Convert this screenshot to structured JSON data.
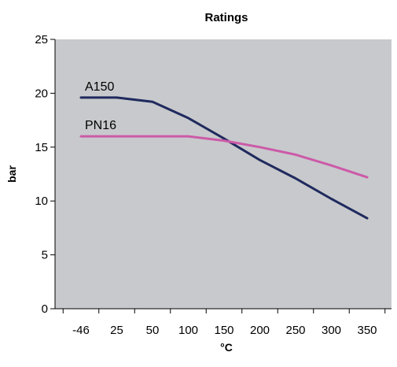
{
  "chart_data": {
    "type": "line",
    "title": "Ratings",
    "xlabel": "°C",
    "ylabel": "bar",
    "categories": [
      "-46",
      "25",
      "50",
      "100",
      "150",
      "200",
      "250",
      "300",
      "350"
    ],
    "ylim": [
      0,
      25
    ],
    "yticks": [
      "0",
      "5",
      "10",
      "15",
      "20",
      "25"
    ],
    "grid": false,
    "background": "#c8c9cc",
    "series": [
      {
        "name": "A150",
        "color": "#1f2a5e",
        "points": [
          {
            "x": "-46",
            "y": 19.6
          },
          {
            "x": "25",
            "y": 19.6
          },
          {
            "x": "50",
            "y": 19.2
          },
          {
            "x": "100",
            "y": 17.7
          },
          {
            "x": "150",
            "y": 15.8
          },
          {
            "x": "200",
            "y": 13.8
          },
          {
            "x": "250",
            "y": 12.1
          },
          {
            "x": "300",
            "y": 10.2
          },
          {
            "x": "350",
            "y": 8.4
          }
        ]
      },
      {
        "name": "PN16",
        "color": "#cc5aa8",
        "points": [
          {
            "x": "-46",
            "y": 16.0
          },
          {
            "x": "25",
            "y": 16.0
          },
          {
            "x": "50",
            "y": 16.0
          },
          {
            "x": "100",
            "y": 16.0
          },
          {
            "x": "150",
            "y": 15.6
          },
          {
            "x": "200",
            "y": 15.0
          },
          {
            "x": "250",
            "y": 14.3
          },
          {
            "x": "300",
            "y": 13.3
          },
          {
            "x": "350",
            "y": 12.2
          }
        ]
      }
    ]
  }
}
